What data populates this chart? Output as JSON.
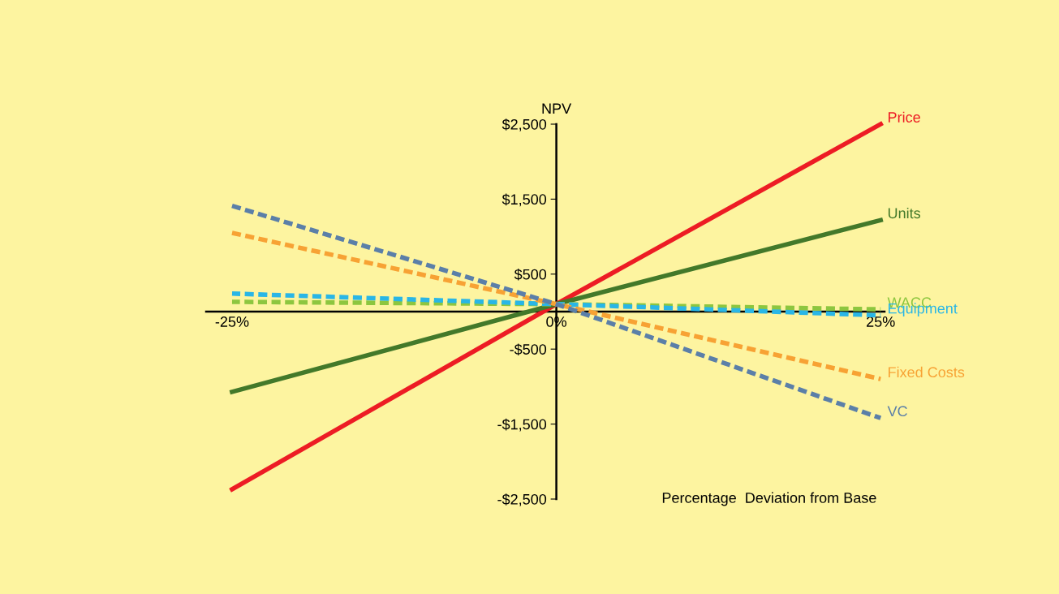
{
  "chart_data": {
    "type": "line",
    "ylabel": "NPV",
    "xlabel": "Percentage  Deviation from Base",
    "x": [
      -25,
      0,
      25
    ],
    "xlim": [
      -27,
      25.3
    ],
    "xticks": [
      {
        "value": -25,
        "label": "-25%"
      },
      {
        "value": 0,
        "label": "0%"
      },
      {
        "value": 25,
        "label": "25%"
      }
    ],
    "ylim": [
      -2500,
      2500
    ],
    "yticks": [
      {
        "value": -2500,
        "label": "-$2,500"
      },
      {
        "value": -1500,
        "label": "-$1,500"
      },
      {
        "value": -500,
        "label": "-$500"
      },
      {
        "value": 500,
        "label": "$500"
      },
      {
        "value": 1500,
        "label": "$1,500"
      },
      {
        "value": 2500,
        "label": "$2,500"
      }
    ],
    "grid": false,
    "legend": false,
    "marker": "none",
    "series": [
      {
        "name": "Price",
        "color": "#ed1c24",
        "line_style": "solid",
        "values": [
          -2370,
          100,
          2500
        ]
      },
      {
        "name": "Units",
        "color": "#43792a",
        "line_style": "solid",
        "values": [
          -1070,
          100,
          1220
        ]
      },
      {
        "name": "WACC",
        "color": "#8dc63f",
        "line_style": "dashed",
        "values": [
          130,
          100,
          30
        ]
      },
      {
        "name": "Equipment",
        "color": "#29b6e6",
        "line_style": "dashed",
        "values": [
          240,
          100,
          -50
        ]
      },
      {
        "name": "Fixed Costs",
        "color": "#f7a234",
        "line_style": "dashed",
        "values": [
          1050,
          100,
          -900
        ]
      },
      {
        "name": "VC",
        "color": "#5b7fa8",
        "line_style": "dashed",
        "values": [
          1410,
          100,
          -1420
        ]
      }
    ]
  }
}
